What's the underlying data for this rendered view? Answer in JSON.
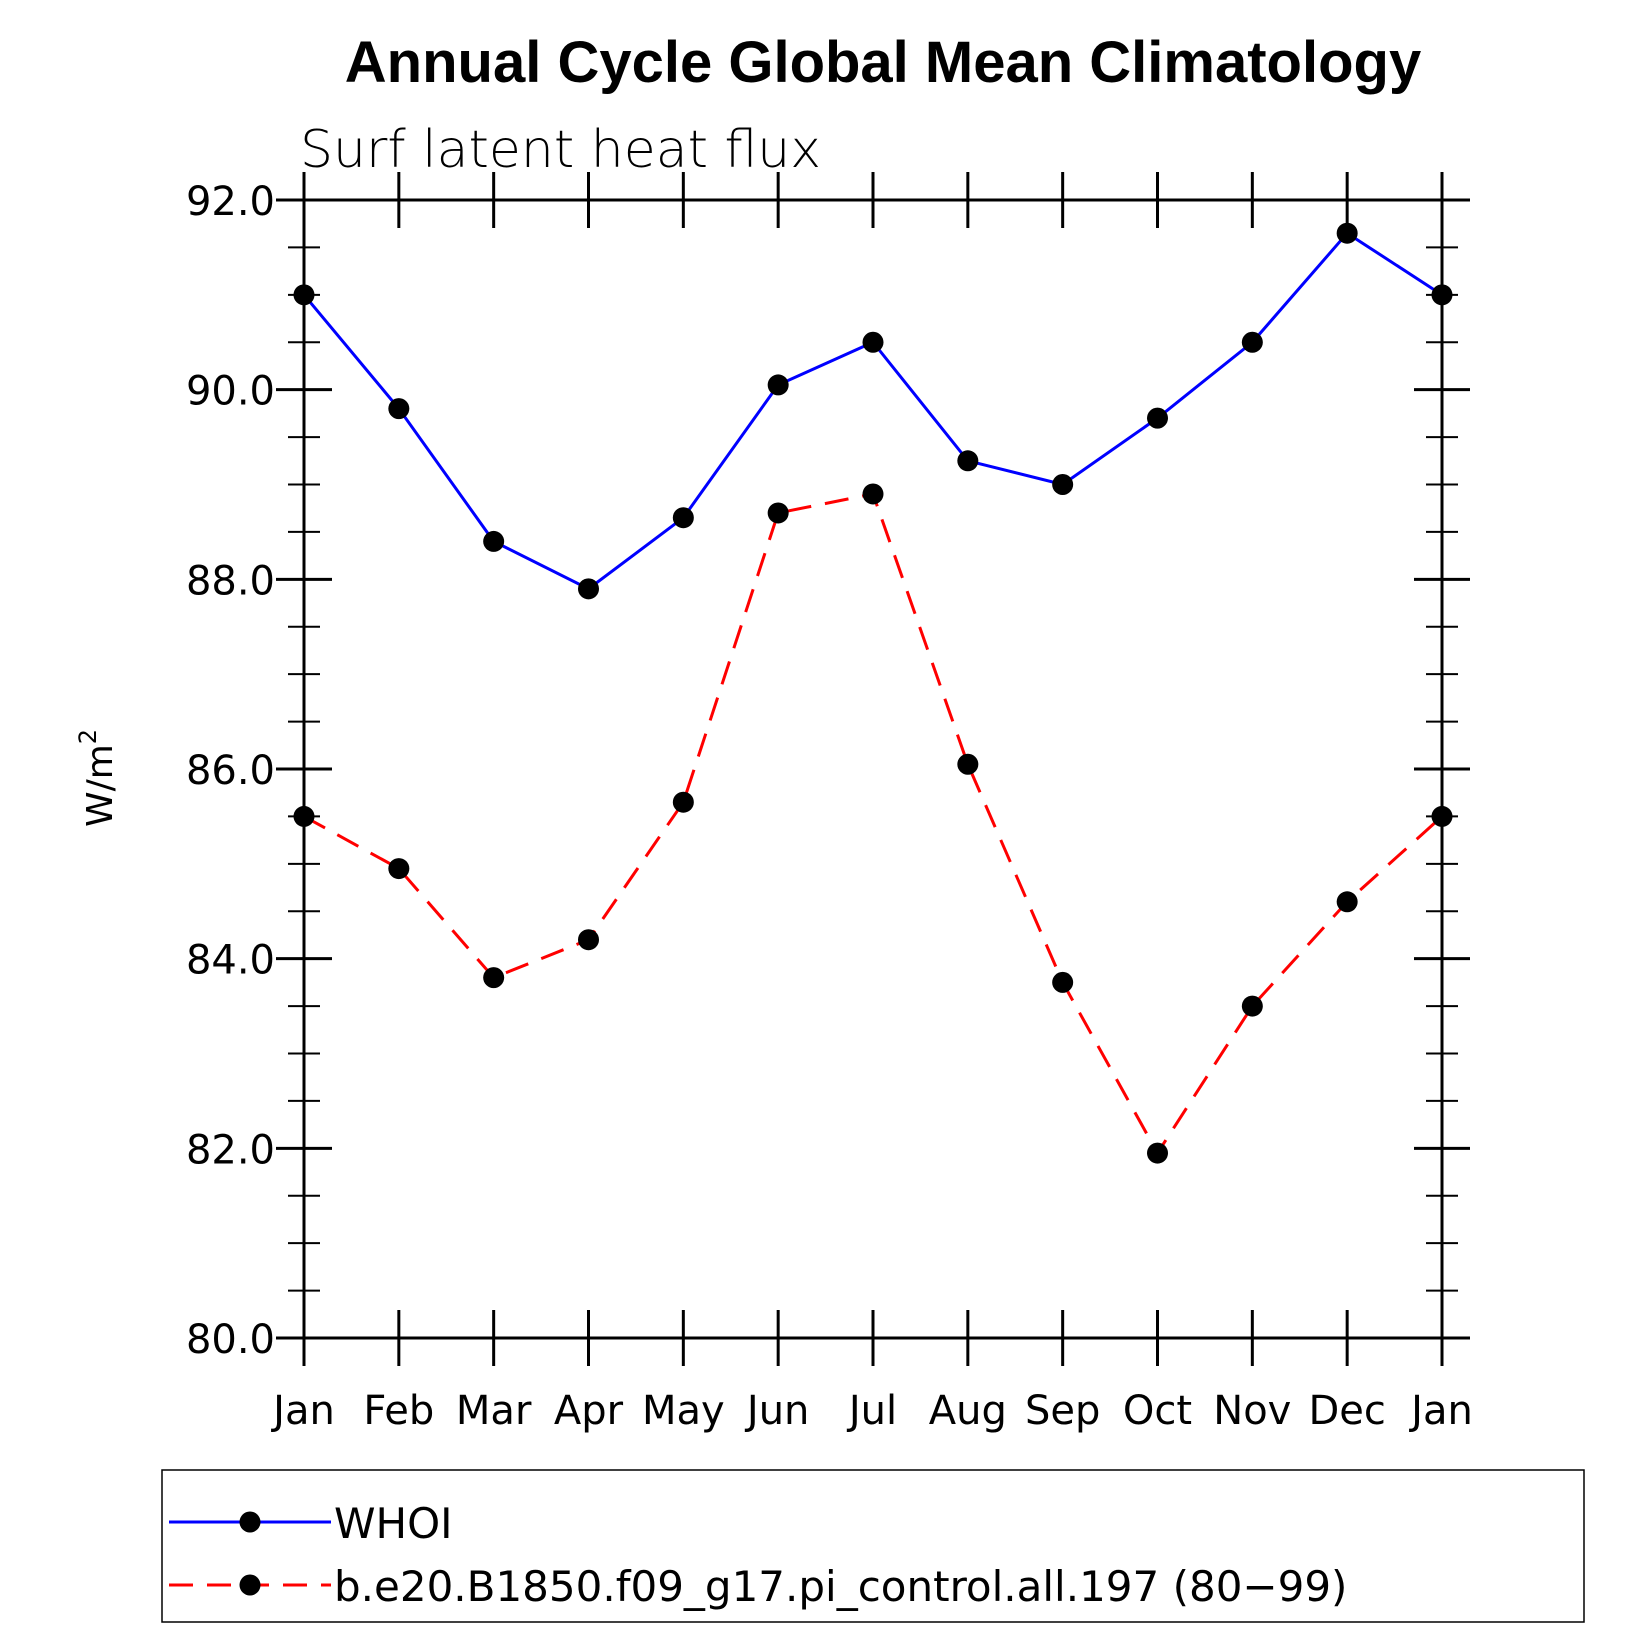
{
  "chart_data": {
    "type": "line",
    "title": "Annual Cycle Global Mean Climatology",
    "subtitle": "Surf latent heat flux",
    "ylabel_base": "W/m",
    "ylabel_sup": "2",
    "ylim": [
      80.0,
      92.0
    ],
    "yticks": [
      "80.0",
      "82.0",
      "84.0",
      "86.0",
      "88.0",
      "90.0",
      "92.0"
    ],
    "ytick_values": [
      80,
      82,
      84,
      86,
      88,
      90,
      92
    ],
    "categories": [
      "Jan",
      "Feb",
      "Mar",
      "Apr",
      "May",
      "Jun",
      "Jul",
      "Aug",
      "Sep",
      "Oct",
      "Nov",
      "Dec",
      "Jan"
    ],
    "series": [
      {
        "name": "WHOI",
        "color": "#0000ff",
        "dash": "solid",
        "values": [
          91.0,
          89.8,
          88.4,
          87.9,
          88.65,
          90.05,
          90.5,
          89.25,
          89.0,
          89.7,
          90.5,
          91.65,
          91.0
        ]
      },
      {
        "name": "b.e20.B1850.f09_g17.pi_control.all.197 (80−99)",
        "color": "#ff0000",
        "dash": "dashed",
        "values": [
          85.5,
          84.95,
          83.8,
          84.2,
          85.65,
          88.7,
          88.9,
          86.05,
          83.75,
          81.95,
          83.5,
          84.6,
          85.5
        ]
      }
    ],
    "marker_color": "#000000",
    "legend_position": "bottom",
    "grid": false
  }
}
